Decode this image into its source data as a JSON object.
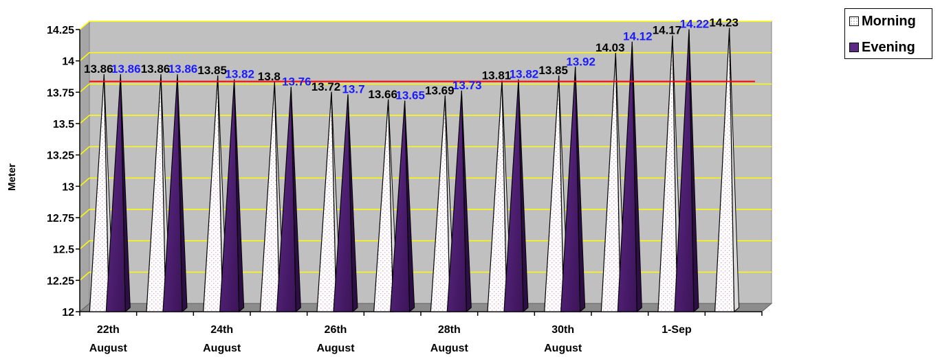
{
  "chart_data": {
    "type": "bar",
    "ylabel": "Meter",
    "ylim": [
      12,
      14.25
    ],
    "yticks": [
      "12",
      "12.25",
      "12.5",
      "12.75",
      "13",
      "13.25",
      "13.5",
      "13.75",
      "14",
      "14.25"
    ],
    "ytick_values": [
      12,
      12.25,
      12.5,
      12.75,
      13,
      13.25,
      13.5,
      13.75,
      14,
      14.25
    ],
    "x_tick_labels": [
      {
        "line1": "22th",
        "line2": "August"
      },
      {
        "line1": "24th",
        "line2": "August"
      },
      {
        "line1": "26th",
        "line2": "August"
      },
      {
        "line1": "28th",
        "line2": "August"
      },
      {
        "line1": "30th",
        "line2": "August"
      },
      {
        "line1": "1-Sep",
        "line2": ""
      }
    ],
    "series": [
      {
        "name": "Morning",
        "values": [
          13.86,
          13.86,
          13.85,
          13.8,
          13.72,
          13.66,
          13.69,
          13.81,
          13.85,
          14.03,
          14.17,
          14.23
        ],
        "labels": [
          "13.86",
          "13.86",
          "13.85",
          "13.8",
          "13.72",
          "13.66",
          "13.69",
          "13.81",
          "13.85",
          "14.03",
          "14.17",
          "14.23"
        ],
        "color": "#ffffff",
        "label_color": "#000000"
      },
      {
        "name": "Evening",
        "values": [
          13.86,
          13.86,
          13.82,
          13.76,
          13.7,
          13.65,
          13.73,
          13.82,
          13.92,
          14.12,
          14.22
        ],
        "labels": [
          "13.86",
          "13.86",
          "13.82",
          "13.76",
          "13.7",
          "13.65",
          "13.73",
          "13.82",
          "13.92",
          "14.12",
          "14.22"
        ],
        "color": "#5c2a82",
        "label_color": "#1a1aff"
      }
    ],
    "reference_line": {
      "value": 13.77,
      "color": "#ff0000"
    },
    "grid": true,
    "grid_color": "#ffff00",
    "plot_background": "#c0c0c0",
    "legend": "top-right"
  },
  "legend": {
    "items": [
      {
        "label": "Morning"
      },
      {
        "label": "Evening"
      }
    ]
  }
}
